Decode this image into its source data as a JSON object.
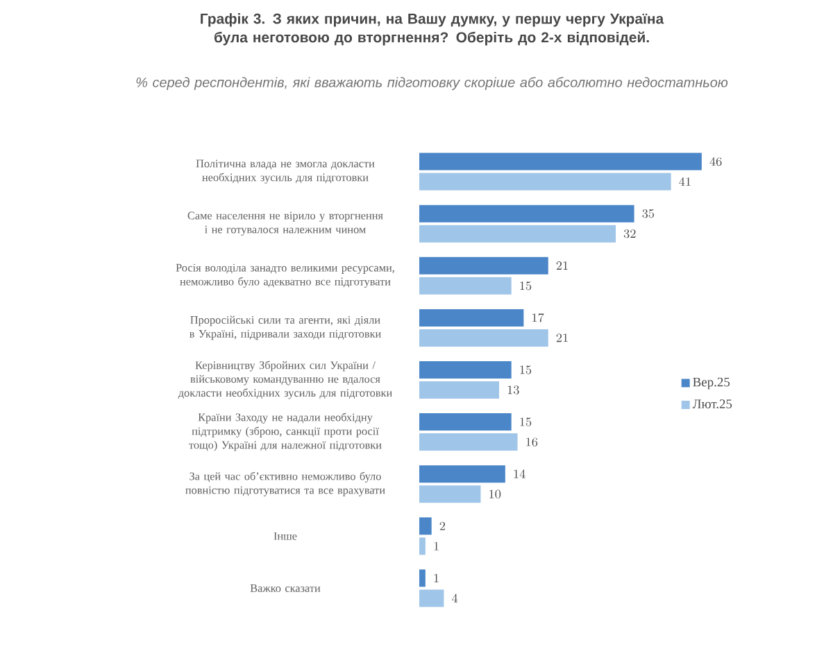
{
  "chart_data": {
    "type": "bar",
    "orientation": "horizontal",
    "title": "Графік 3. З яких причин, на Вашу думку, у першу чергу Україна була неготовою до вторгнення? Оберіть до 2-х відповідей.",
    "subtitle": "% серед респондентів, які вважають підготовку скоріше або абсолютно недостатньою",
    "categories": [
      "Політична влада не змогла докласти необхідних зусиль для підготовки",
      "Саме населення не вірило у вторгнення і не готувалося належним чином",
      "Росія володіла занадто великими ресурсами, неможливо було адекватно все підготувати",
      "Проросійські сили та агенти, які діяли в Україні, підривали заходи підготовки",
      "Керівництву Збройних сил України / військовому командуванню не вдалося докласти необхідних зусиль для підготовки",
      "Країни Заходу не надали необхідну підтримку (зброю, санкції проти росії тощо) Україні для належної підготовки",
      "За цей час об’єктивно неможливо було повністю підготуватися та все врахувати",
      "Інше",
      "Важко сказати"
    ],
    "series": [
      {
        "name": "Вер.25",
        "color": "#4a86c8",
        "values": [
          46,
          35,
          21,
          17,
          15,
          15,
          14,
          2,
          1
        ]
      },
      {
        "name": "Лют.25",
        "color": "#9fc5e8",
        "values": [
          41,
          32,
          15,
          21,
          13,
          16,
          10,
          1,
          4
        ]
      }
    ],
    "data_labels": true,
    "legend": "right"
  }
}
